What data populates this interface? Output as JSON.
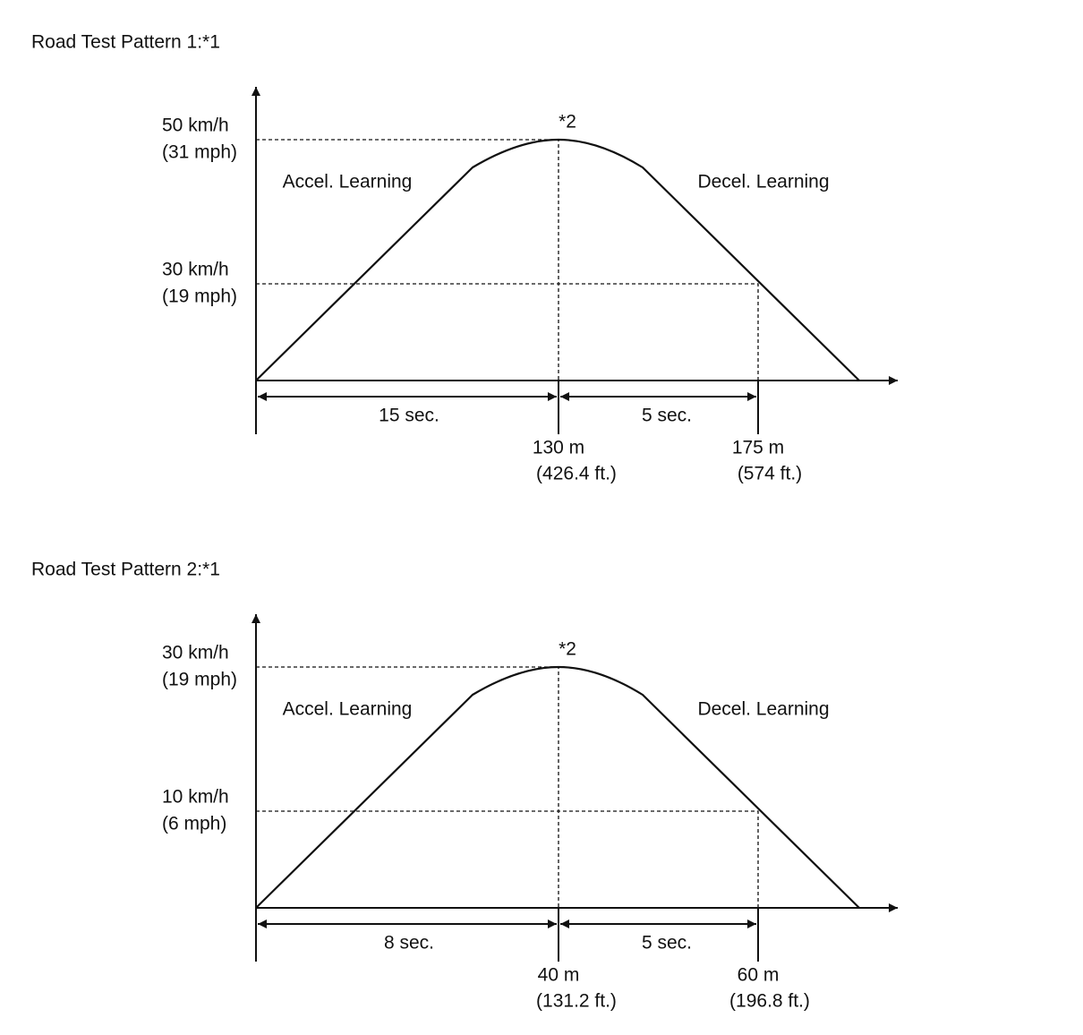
{
  "panels": [
    {
      "title": "Road Test Pattern 1:*1",
      "peak_note": "*2",
      "speed_high": [
        "50 km/h",
        "(31 mph)"
      ],
      "speed_low": [
        "30 km/h",
        "(19 mph)"
      ],
      "accel_label": "Accel. Learning",
      "decel_label": "Decel. Learning",
      "accel_time": "15 sec.",
      "decel_time": "5 sec.",
      "distance_peak": [
        "130 m",
        "(426.4 ft.)"
      ],
      "distance_end": [
        "175 m",
        "(574 ft.)"
      ]
    },
    {
      "title": "Road Test Pattern 2:*1",
      "peak_note": "*2",
      "speed_high": [
        "30 km/h",
        "(19 mph)"
      ],
      "speed_low": [
        "10 km/h",
        "(6 mph)"
      ],
      "accel_label": "Accel. Learning",
      "decel_label": "Decel. Learning",
      "accel_time": "8 sec.",
      "decel_time": "5 sec.",
      "distance_peak": [
        "40 m",
        "(131.2 ft.)"
      ],
      "distance_end": [
        "60 m",
        "(196.8 ft.)"
      ]
    }
  ]
}
